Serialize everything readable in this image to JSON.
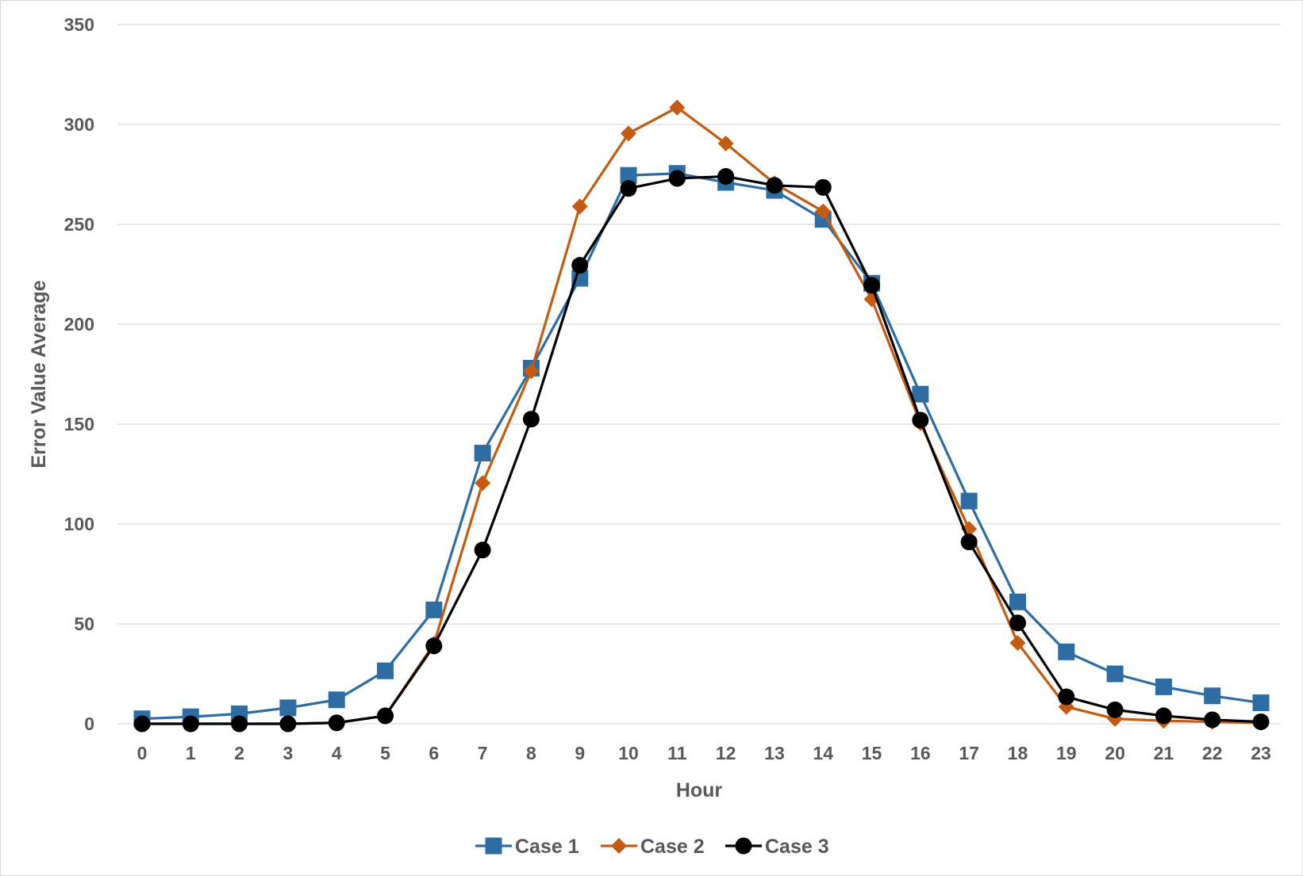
{
  "chart_data": {
    "type": "line",
    "title": "",
    "xlabel": "Hour",
    "ylabel": "Error Value Average",
    "x": [
      0,
      1,
      2,
      3,
      4,
      5,
      6,
      7,
      8,
      9,
      10,
      11,
      12,
      13,
      14,
      15,
      16,
      17,
      18,
      19,
      20,
      21,
      22,
      23
    ],
    "x_tick_labels": [
      "0",
      "1",
      "2",
      "3",
      "4",
      "5",
      "6",
      "7",
      "8",
      "9",
      "10",
      "11",
      "12",
      "13",
      "14",
      "15",
      "16",
      "17",
      "18",
      "19",
      "20",
      "21",
      "22",
      "23"
    ],
    "ylim": [
      0,
      350
    ],
    "y_ticks": [
      0,
      50,
      100,
      150,
      200,
      250,
      300,
      350
    ],
    "y_tick_labels": [
      "0",
      "50",
      "100",
      "150",
      "200",
      "250",
      "300",
      "350"
    ],
    "grid": true,
    "legend_position": "bottom",
    "series": [
      {
        "name": "Case 1",
        "color": "#2e6da4",
        "marker": "square",
        "values": [
          2.5,
          3.5,
          5,
          8,
          12,
          26.5,
          57,
          135.5,
          178,
          223,
          274.5,
          275.5,
          271,
          267,
          252.5,
          220.5,
          165,
          111.5,
          61,
          36,
          25,
          18.5,
          14,
          10.5
        ]
      },
      {
        "name": "Case 2",
        "color": "#c55a11",
        "marker": "diamond",
        "values": [
          0,
          0,
          0,
          0,
          0.5,
          4,
          40,
          120.5,
          176.5,
          259,
          295.5,
          308.5,
          290.5,
          270.5,
          256.5,
          212.5,
          150.5,
          97.5,
          40.5,
          8.5,
          2.5,
          1.5,
          1,
          0.5
        ]
      },
      {
        "name": "Case 3",
        "color": "#000000",
        "marker": "circle",
        "values": [
          0,
          0,
          0,
          0,
          0.5,
          4,
          39,
          87,
          152.5,
          229.5,
          268,
          273,
          274,
          269.5,
          268.5,
          219.5,
          152,
          91,
          50.5,
          13.5,
          7,
          4,
          2,
          1
        ]
      }
    ]
  }
}
